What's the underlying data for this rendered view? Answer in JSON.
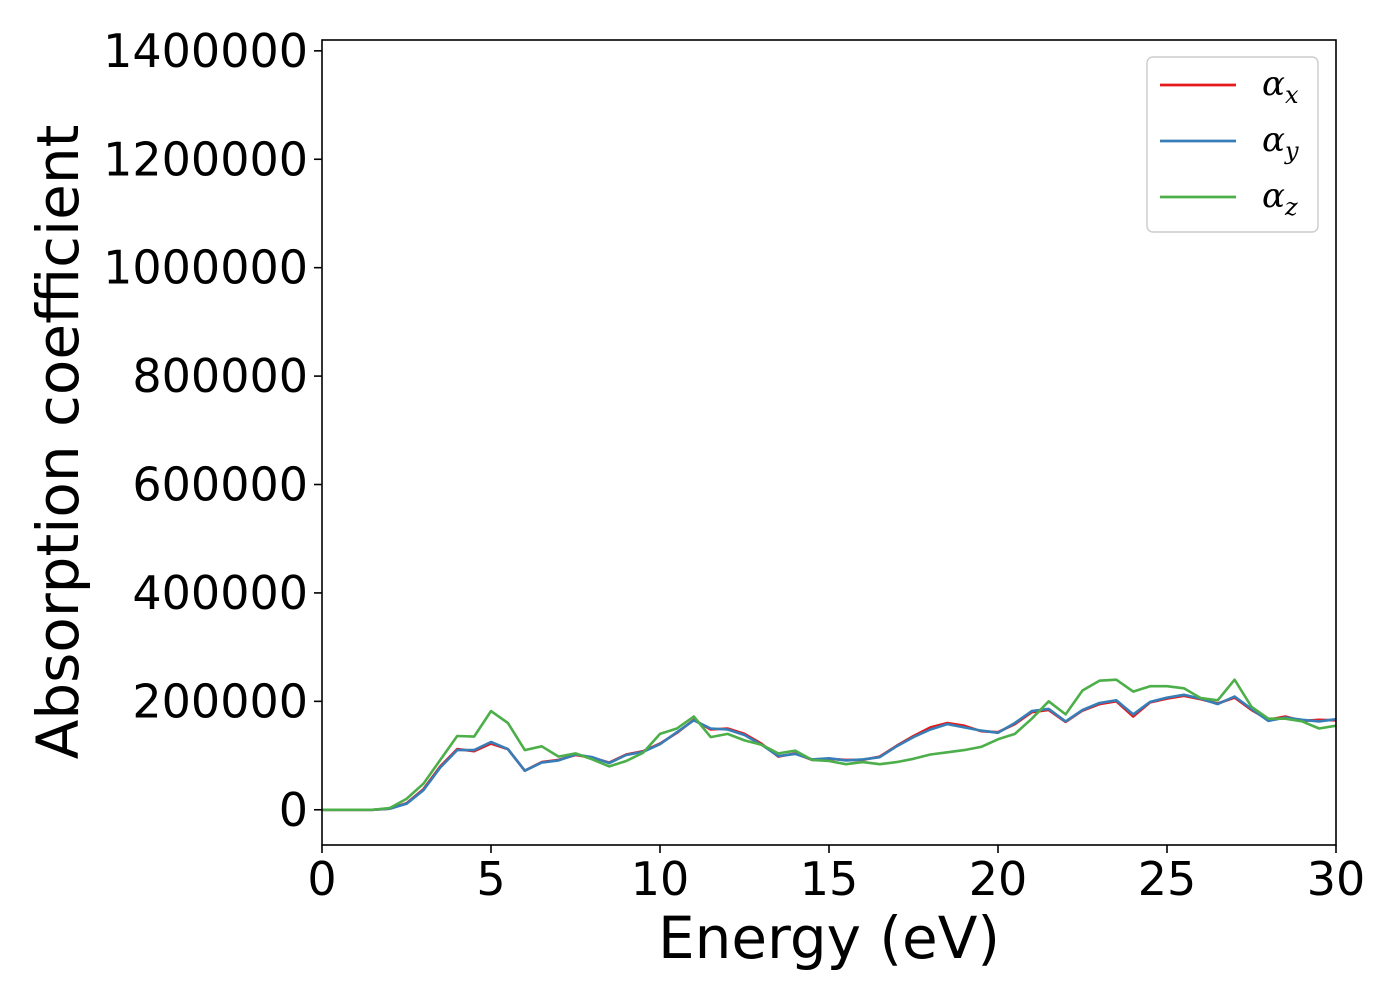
{
  "chart_data": {
    "type": "line",
    "title": "",
    "xlabel": "Energy (eV)",
    "ylabel": "Absorption coefficient",
    "xlim": [
      0,
      30
    ],
    "ylim": [
      -65000,
      1420000
    ],
    "x_ticks": [
      0,
      5,
      10,
      15,
      20,
      25,
      30
    ],
    "y_ticks": [
      0,
      200000,
      400000,
      600000,
      800000,
      1000000,
      1200000,
      1400000
    ],
    "grid": false,
    "legend_position": "top-right",
    "x": [
      0,
      0.5,
      1,
      1.5,
      2,
      2.5,
      3,
      3.5,
      4,
      4.5,
      5,
      5.5,
      6,
      6.5,
      7,
      7.5,
      8,
      8.5,
      9,
      9.5,
      10,
      10.5,
      11,
      11.5,
      12,
      12.5,
      13,
      13.5,
      14,
      14.5,
      15,
      15.5,
      16,
      16.5,
      17,
      17.5,
      18,
      18.5,
      19,
      19.5,
      20,
      20.5,
      21,
      21.5,
      22,
      22.5,
      23,
      23.5,
      24,
      24.5,
      25,
      25.5,
      26,
      26.5,
      27,
      27.5,
      28,
      28.5,
      29,
      29.5,
      30
    ],
    "series": [
      {
        "name": "α",
        "subscript": "x",
        "color": "#e41a1c",
        "values": [
          0,
          0,
          0,
          0,
          2000,
          12000,
          38000,
          80000,
          112000,
          108000,
          122000,
          112000,
          72000,
          88000,
          92000,
          101000,
          96000,
          87000,
          102000,
          108000,
          122000,
          142000,
          166000,
          148000,
          150000,
          140000,
          122000,
          98000,
          104000,
          92000,
          94000,
          92000,
          92000,
          98000,
          118000,
          136000,
          152000,
          160000,
          155000,
          145000,
          143000,
          158000,
          180000,
          184000,
          162000,
          183000,
          195000,
          200000,
          172000,
          198000,
          205000,
          210000,
          204000,
          196000,
          207000,
          184000,
          166000,
          172000,
          164000,
          166000,
          165000
        ]
      },
      {
        "name": "α",
        "subscript": "y",
        "color": "#377eb8",
        "values": [
          0,
          0,
          0,
          0,
          2000,
          11000,
          36000,
          78000,
          110000,
          110000,
          125000,
          112000,
          72000,
          87000,
          91000,
          102000,
          97000,
          86000,
          101000,
          107000,
          121000,
          143000,
          165000,
          150000,
          148000,
          138000,
          120000,
          99000,
          103000,
          93000,
          95000,
          91000,
          93000,
          97000,
          117000,
          134000,
          148000,
          158000,
          152000,
          146000,
          142000,
          160000,
          182000,
          186000,
          163000,
          184000,
          197000,
          202000,
          176000,
          199000,
          207000,
          212000,
          205000,
          195000,
          209000,
          186000,
          164000,
          170000,
          166000,
          163000,
          167000
        ]
      },
      {
        "name": "α",
        "subscript": "z",
        "color": "#4daf4a",
        "values": [
          0,
          0,
          0,
          0,
          3000,
          20000,
          48000,
          92000,
          136000,
          135000,
          182000,
          160000,
          110000,
          117000,
          98000,
          104000,
          93000,
          80000,
          90000,
          105000,
          140000,
          150000,
          172000,
          134000,
          140000,
          128000,
          120000,
          104000,
          109000,
          92000,
          90000,
          84000,
          88000,
          84000,
          88000,
          94000,
          102000,
          106000,
          110000,
          116000,
          130000,
          140000,
          168000,
          200000,
          176000,
          220000,
          238000,
          240000,
          218000,
          228000,
          228000,
          224000,
          206000,
          202000,
          240000,
          190000,
          168000,
          168000,
          163000,
          150000,
          155000
        ]
      }
    ]
  }
}
